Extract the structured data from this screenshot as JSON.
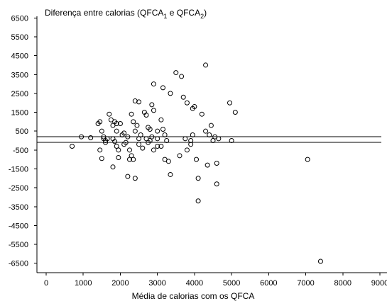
{
  "chart_data": {
    "type": "scatter",
    "title_parts": {
      "main": "Diferença entre calorias (QFCA",
      "sub1": "1",
      "middle": "  e QFCA",
      "sub2": "2",
      "end": ")"
    },
    "xlabel": "Média de calorias  com os QFCA",
    "ylabel": "",
    "xlim": [
      0,
      9000
    ],
    "ylim": [
      -7000,
      7000
    ],
    "xticks": [
      "0",
      "1000",
      "2000",
      "3000",
      "4000",
      "5000",
      "6000",
      "7000",
      "8000",
      "9000"
    ],
    "yticks": [
      "6500",
      "5500",
      "4500",
      "3500",
      "2500",
      "1500",
      "500",
      "-500",
      "-1500",
      "-2500",
      "-3500",
      "-4500",
      "-5500",
      "-6500"
    ],
    "grid": false,
    "reference_lines_y": [
      200,
      -100
    ],
    "points": [
      [
        700,
        -300
      ],
      [
        950,
        200
      ],
      [
        1200,
        150
      ],
      [
        1400,
        900
      ],
      [
        1450,
        1000
      ],
      [
        1500,
        500
      ],
      [
        1550,
        200
      ],
      [
        1550,
        100
      ],
      [
        1600,
        -100
      ],
      [
        1450,
        -500
      ],
      [
        1500,
        -950
      ],
      [
        1600,
        0
      ],
      [
        1650,
        100
      ],
      [
        1700,
        1400
      ],
      [
        1750,
        1100
      ],
      [
        1800,
        800
      ],
      [
        1850,
        1000
      ],
      [
        1900,
        900
      ],
      [
        1900,
        500
      ],
      [
        1800,
        100
      ],
      [
        1850,
        -50
      ],
      [
        1900,
        -300
      ],
      [
        1950,
        -500
      ],
      [
        1950,
        -900
      ],
      [
        1800,
        -1400
      ],
      [
        2000,
        900
      ],
      [
        2050,
        300
      ],
      [
        2100,
        400
      ],
      [
        2150,
        -100
      ],
      [
        2100,
        -200
      ],
      [
        2200,
        200
      ],
      [
        2250,
        -500
      ],
      [
        2300,
        1400
      ],
      [
        2350,
        1000
      ],
      [
        2400,
        500
      ],
      [
        2300,
        -800
      ],
      [
        2350,
        -1000
      ],
      [
        2250,
        -1000
      ],
      [
        2200,
        -1900
      ],
      [
        2400,
        -2000
      ],
      [
        2400,
        2100
      ],
      [
        2500,
        2050
      ],
      [
        2450,
        800
      ],
      [
        2550,
        300
      ],
      [
        2500,
        -200
      ],
      [
        2500,
        100
      ],
      [
        2600,
        -400
      ],
      [
        2650,
        1500
      ],
      [
        2700,
        1350
      ],
      [
        2750,
        700
      ],
      [
        2700,
        100
      ],
      [
        2750,
        -100
      ],
      [
        2850,
        1900
      ],
      [
        2800,
        600
      ],
      [
        2850,
        200
      ],
      [
        2800,
        0
      ],
      [
        2900,
        -500
      ],
      [
        2900,
        1600
      ],
      [
        3000,
        500
      ],
      [
        3000,
        100
      ],
      [
        3000,
        -300
      ],
      [
        3100,
        1100
      ],
      [
        3150,
        600
      ],
      [
        3200,
        300
      ],
      [
        3100,
        -300
      ],
      [
        3250,
        0
      ],
      [
        3200,
        -1000
      ],
      [
        3300,
        -1100
      ],
      [
        3350,
        -1800
      ],
      [
        2900,
        3000
      ],
      [
        3150,
        2800
      ],
      [
        3350,
        2500
      ],
      [
        3500,
        3600
      ],
      [
        3650,
        3400
      ],
      [
        3700,
        2300
      ],
      [
        3800,
        2000
      ],
      [
        3600,
        -800
      ],
      [
        3800,
        -500
      ],
      [
        3900,
        -200
      ],
      [
        3950,
        300
      ],
      [
        3950,
        1700
      ],
      [
        4000,
        1800
      ],
      [
        4050,
        -1000
      ],
      [
        4100,
        -2000
      ],
      [
        4100,
        -3200
      ],
      [
        4200,
        1400
      ],
      [
        4300,
        500
      ],
      [
        4350,
        -1300
      ],
      [
        4300,
        4000
      ],
      [
        4400,
        300
      ],
      [
        4450,
        800
      ],
      [
        4500,
        0
      ],
      [
        4600,
        -1200
      ],
      [
        4600,
        -2300
      ],
      [
        4650,
        100
      ],
      [
        4950,
        2000
      ],
      [
        5000,
        0
      ],
      [
        5100,
        1500
      ],
      [
        3900,
        0
      ],
      [
        3750,
        100
      ],
      [
        4550,
        200
      ],
      [
        7050,
        -1000
      ],
      [
        7400,
        -6400
      ]
    ]
  }
}
